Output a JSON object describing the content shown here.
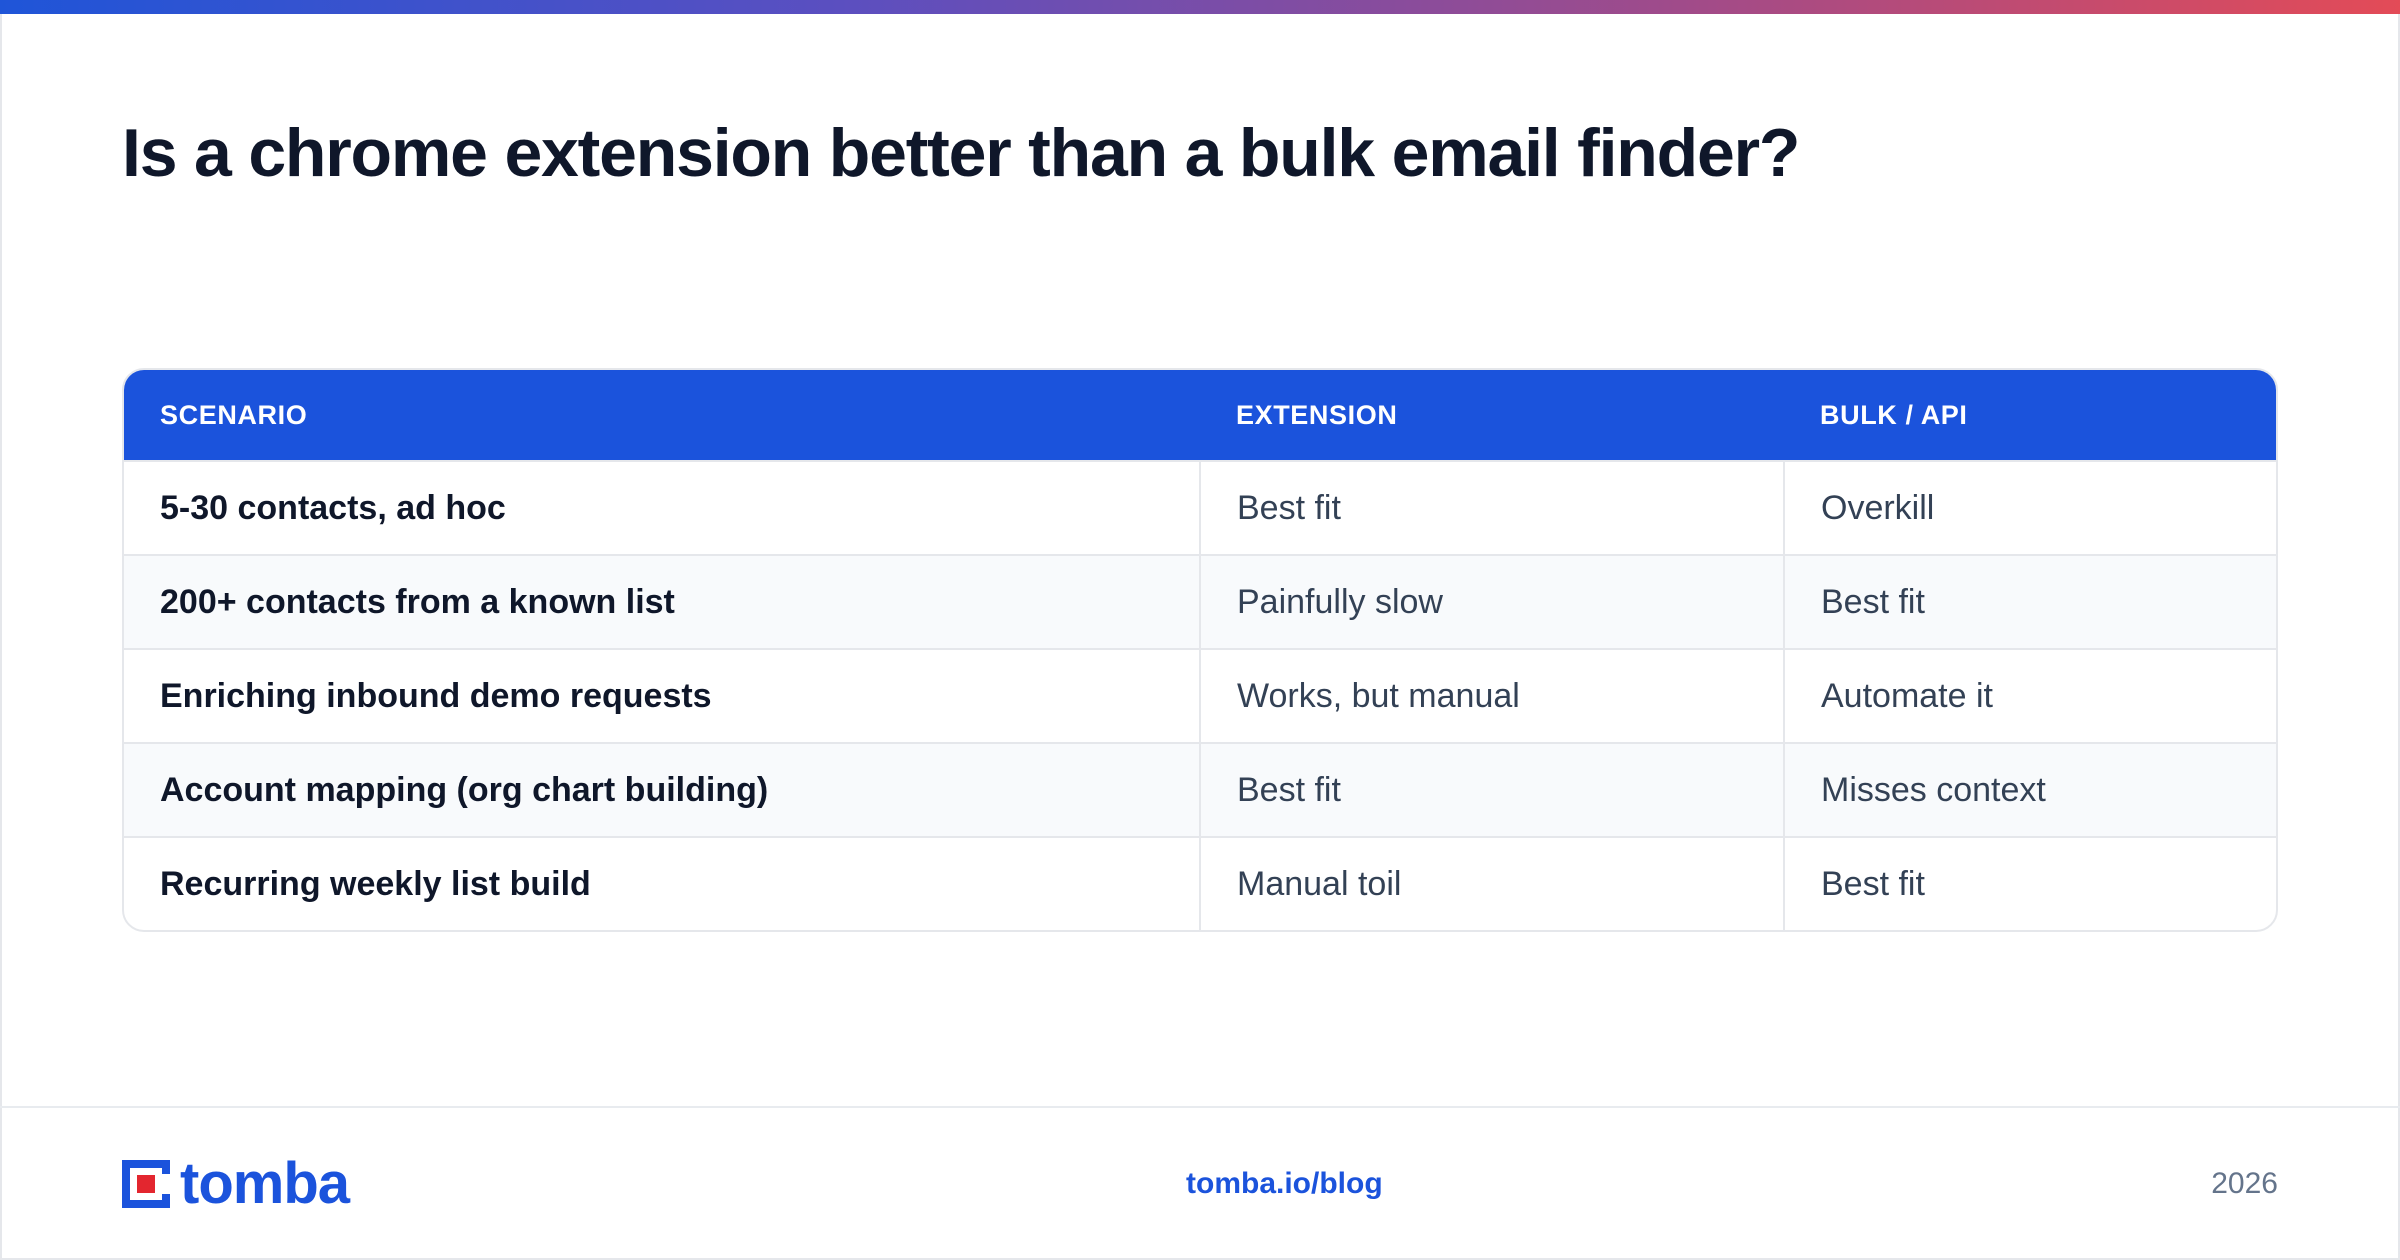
{
  "headline": "Is a chrome extension better than a bulk email finder?",
  "table": {
    "headers": [
      "SCENARIO",
      "EXTENSION",
      "BULK / API"
    ],
    "rows": [
      {
        "scenario": "5-30 contacts, ad hoc",
        "extension": "Best fit",
        "bulk": "Overkill"
      },
      {
        "scenario": "200+ contacts from a known list",
        "extension": "Painfully slow",
        "bulk": "Best fit"
      },
      {
        "scenario": "Enriching inbound demo requests",
        "extension": "Works, but manual",
        "bulk": "Automate it"
      },
      {
        "scenario": "Account mapping (org chart building)",
        "extension": "Best fit",
        "bulk": "Misses context"
      },
      {
        "scenario": "Recurring weekly list build",
        "extension": "Manual toil",
        "bulk": "Best fit"
      }
    ]
  },
  "footer": {
    "logo_text": "tomba",
    "link": "tomba.io/blog",
    "year": "2026"
  },
  "colors": {
    "brand_blue": "#1b53dc",
    "logo_red": "#e3262f",
    "gradient_start": "#1f55d8",
    "gradient_end": "#e34b57"
  }
}
